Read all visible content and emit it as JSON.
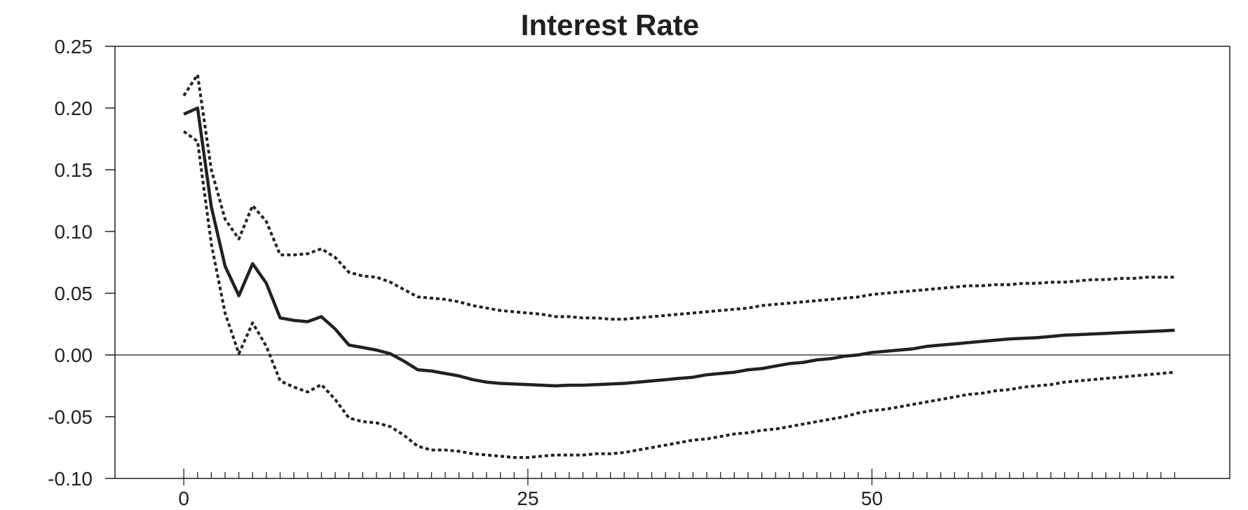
{
  "chart_data": {
    "type": "line",
    "title": "Interest Rate",
    "xlabel": "",
    "ylabel": "",
    "xlim": [
      -5,
      76
    ],
    "ylim": [
      -0.1,
      0.25
    ],
    "x_ticks": [
      0,
      25,
      50
    ],
    "x_tick_labels": [
      "0",
      "25",
      "50"
    ],
    "x_minor_ticks_every": 1,
    "y_ticks": [
      0.25,
      0.2,
      0.15,
      0.1,
      0.05,
      0.0,
      -0.05,
      -0.1
    ],
    "y_tick_labels": [
      "0.25",
      "0.20",
      "0.15",
      "0.10",
      "0.05",
      "0.00",
      "-0.05",
      "-0.10"
    ],
    "zero_line": true,
    "grid": false,
    "colors": {
      "line": "#231f20",
      "text": "#231f20",
      "axis": "#231f20"
    },
    "x": [
      0,
      1,
      2,
      3,
      4,
      5,
      6,
      7,
      8,
      9,
      10,
      11,
      12,
      13,
      14,
      15,
      16,
      17,
      18,
      19,
      20,
      21,
      22,
      23,
      24,
      25,
      26,
      27,
      28,
      29,
      30,
      31,
      32,
      33,
      34,
      35,
      36,
      37,
      38,
      39,
      40,
      41,
      42,
      43,
      44,
      45,
      46,
      47,
      48,
      49,
      50,
      51,
      52,
      53,
      54,
      55,
      56,
      57,
      58,
      59,
      60,
      61,
      62,
      63,
      64,
      65,
      66,
      67,
      68,
      69,
      70,
      71,
      72
    ],
    "series": [
      {
        "style": "solid",
        "values": [
          0.195,
          0.2,
          0.12,
          0.072,
          0.048,
          0.074,
          0.058,
          0.03,
          0.028,
          0.027,
          0.031,
          0.021,
          0.008,
          0.006,
          0.004,
          0.001,
          -0.005,
          -0.012,
          -0.013,
          -0.015,
          -0.017,
          -0.02,
          -0.022,
          -0.023,
          -0.0235,
          -0.024,
          -0.0245,
          -0.025,
          -0.0245,
          -0.0245,
          -0.024,
          -0.0235,
          -0.023,
          -0.022,
          -0.021,
          -0.02,
          -0.019,
          -0.018,
          -0.016,
          -0.015,
          -0.014,
          -0.012,
          -0.011,
          -0.009,
          -0.007,
          -0.006,
          -0.004,
          -0.003,
          -0.001,
          0.0,
          0.002,
          0.003,
          0.004,
          0.005,
          0.007,
          0.008,
          0.009,
          0.01,
          0.011,
          0.012,
          0.013,
          0.0135,
          0.014,
          0.015,
          0.016,
          0.0165,
          0.017,
          0.0175,
          0.018,
          0.0185,
          0.019,
          0.0195,
          0.02
        ]
      },
      {
        "style": "dotted",
        "values": [
          0.21,
          0.227,
          0.15,
          0.11,
          0.094,
          0.121,
          0.108,
          0.081,
          0.081,
          0.082,
          0.086,
          0.079,
          0.067,
          0.064,
          0.063,
          0.059,
          0.053,
          0.047,
          0.046,
          0.045,
          0.043,
          0.04,
          0.038,
          0.036,
          0.035,
          0.034,
          0.033,
          0.031,
          0.031,
          0.03,
          0.03,
          0.029,
          0.029,
          0.03,
          0.031,
          0.032,
          0.033,
          0.034,
          0.035,
          0.036,
          0.037,
          0.038,
          0.04,
          0.041,
          0.042,
          0.043,
          0.044,
          0.045,
          0.046,
          0.047,
          0.049,
          0.05,
          0.051,
          0.052,
          0.053,
          0.054,
          0.055,
          0.056,
          0.056,
          0.057,
          0.057,
          0.058,
          0.058,
          0.059,
          0.059,
          0.06,
          0.061,
          0.061,
          0.062,
          0.062,
          0.063,
          0.063,
          0.063
        ]
      },
      {
        "style": "dotted",
        "values": [
          0.181,
          0.173,
          0.09,
          0.034,
          0.001,
          0.026,
          0.007,
          -0.021,
          -0.026,
          -0.03,
          -0.024,
          -0.036,
          -0.051,
          -0.054,
          -0.055,
          -0.058,
          -0.065,
          -0.074,
          -0.077,
          -0.077,
          -0.078,
          -0.08,
          -0.081,
          -0.082,
          -0.083,
          -0.083,
          -0.082,
          -0.081,
          -0.081,
          -0.081,
          -0.08,
          -0.08,
          -0.079,
          -0.077,
          -0.075,
          -0.073,
          -0.071,
          -0.069,
          -0.068,
          -0.066,
          -0.064,
          -0.063,
          -0.061,
          -0.06,
          -0.058,
          -0.056,
          -0.054,
          -0.052,
          -0.05,
          -0.047,
          -0.045,
          -0.044,
          -0.042,
          -0.04,
          -0.038,
          -0.036,
          -0.034,
          -0.032,
          -0.031,
          -0.029,
          -0.028,
          -0.026,
          -0.025,
          -0.024,
          -0.022,
          -0.021,
          -0.02,
          -0.019,
          -0.018,
          -0.017,
          -0.016,
          -0.015,
          -0.014
        ]
      }
    ]
  }
}
